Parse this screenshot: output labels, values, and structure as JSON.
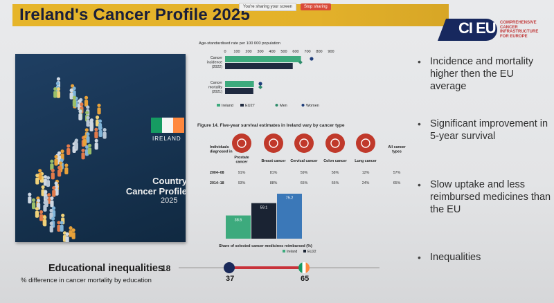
{
  "screen_share": {
    "message": "You're sharing your screen",
    "stop_label": "Stop sharing"
  },
  "header": {
    "title": "Ireland's Cancer Profile 2025",
    "title_color": "#1a1f3a",
    "bar_color": "#e3b12a"
  },
  "logo": {
    "mark": "CI EU",
    "subtitle_lines": [
      "COMPREHENSIVE",
      "CANCER",
      "INFRASTRUCTURE",
      "FOR EUROPE"
    ]
  },
  "cover": {
    "country": "IRELAND",
    "title_line1": "Country",
    "title_line2": "Cancer Profile",
    "year": "2025"
  },
  "chart_data": [
    {
      "type": "bar",
      "title": "Age-standardised rate per 100 000 population",
      "xlim": [
        0,
        900
      ],
      "x_ticks": [
        "0",
        "100",
        "200",
        "300",
        "400",
        "500",
        "600",
        "700",
        "800",
        "900"
      ],
      "categories": [
        "Cancer incidence (2022)",
        "Cancer mortality (2021)"
      ],
      "series": [
        {
          "name": "Ireland",
          "values": [
            645,
            245
          ],
          "color": "#3daa7d"
        },
        {
          "name": "EU27",
          "values": [
            575,
            240
          ],
          "color": "#1f2a40"
        },
        {
          "name": "Men",
          "markers": [
            640,
            300
          ],
          "color": "#2e8b6a"
        },
        {
          "name": "Women",
          "markers": [
            735,
            300
          ],
          "color": "#1e3d7a"
        }
      ],
      "orientation": "horizontal"
    },
    {
      "type": "bar",
      "title": "Share of selected cancer medicines reimbursed (%)",
      "categories": [
        "Ireland",
        "EU22"
      ],
      "values": [
        38.5,
        59.1
      ],
      "extra_bar": {
        "value": 75.2
      },
      "colors": [
        "#3daa7d",
        "#1a2333",
        "#3b78b8"
      ],
      "legend": [
        "Ireland",
        "EU22"
      ]
    }
  ],
  "survival": {
    "title": "Figure 14. Five-year survival estimates in Ireland vary by cancer type",
    "row_header": "Individuals diagnosed in",
    "columns": [
      "Prostate cancer",
      "Breast cancer",
      "Cervical cancer",
      "Colon cancer",
      "Lung cancer",
      "All cancer types"
    ],
    "rows": [
      {
        "period": "2004–08",
        "values": [
          "91%",
          "81%",
          "59%",
          "58%",
          "12%",
          "57%"
        ]
      },
      {
        "period": "2014–18",
        "values": [
          "93%",
          "88%",
          "65%",
          "66%",
          "24%",
          "65%"
        ]
      }
    ],
    "icon_color": "#c0392b"
  },
  "bullets": [
    "Incidence and mortality higher then the EU average",
    "Significant improvement in 5-year survival",
    "Slow uptake and less reimbursed medicines than the EU",
    "Inequalities"
  ],
  "education": {
    "title": "Educational inequalities",
    "subtitle": "% difference in cancer mortality by education",
    "scale_start": "18",
    "eu_value": "37",
    "ireland_value": "65"
  }
}
